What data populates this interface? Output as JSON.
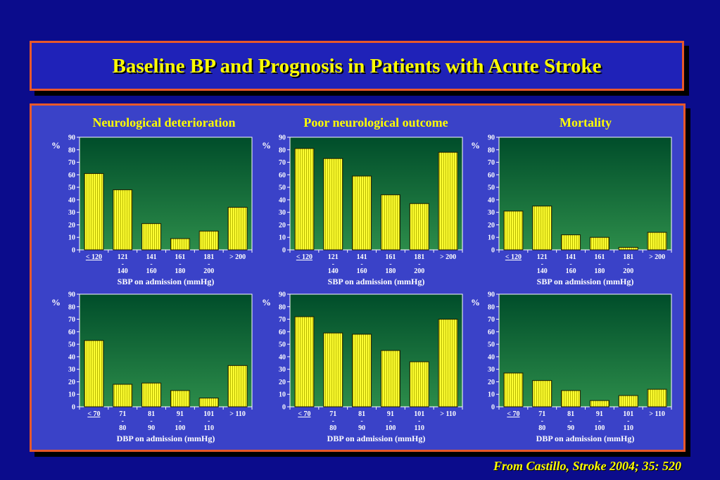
{
  "title": "Baseline BP and Prognosis in Patients with Acute Stroke",
  "credit": "From Castillo, Stroke 2004; 35: 520",
  "colors": {
    "background": "#0b0c8c",
    "panel": "#3a42c8",
    "border": "#e8582a",
    "title_text": "#ffff00",
    "bar": "#ffff33",
    "plot_top": "#004d2a",
    "plot_bottom": "#2c8c4a"
  },
  "chart_data": [
    {
      "type": "bar",
      "title": "Neurological deterioration",
      "ylabel": "%",
      "xlabel": "SBP on admission (mmHg)",
      "ylim": [
        0,
        90
      ],
      "yticks": [
        "0",
        "10",
        "20",
        "30",
        "40",
        "50",
        "60",
        "70",
        "80",
        "90"
      ],
      "categories": [
        [
          "< 120"
        ],
        [
          "121",
          "-",
          "140"
        ],
        [
          "141",
          "-",
          "160"
        ],
        [
          "161",
          "-",
          "180"
        ],
        [
          "181",
          "-",
          "200"
        ],
        [
          "> 200"
        ]
      ],
      "values": [
        61,
        48,
        21,
        9,
        15,
        34
      ]
    },
    {
      "type": "bar",
      "title": "Poor neurological outcome",
      "ylabel": "%",
      "xlabel": "SBP on admission (mmHg)",
      "ylim": [
        0,
        90
      ],
      "yticks": [
        "0",
        "10",
        "20",
        "30",
        "40",
        "50",
        "60",
        "70",
        "80",
        "90"
      ],
      "categories": [
        [
          "< 120"
        ],
        [
          "121",
          "-",
          "140"
        ],
        [
          "141",
          "-",
          "160"
        ],
        [
          "161",
          "-",
          "180"
        ],
        [
          "181",
          "-",
          "200"
        ],
        [
          "> 200"
        ]
      ],
      "values": [
        81,
        73,
        59,
        44,
        37,
        78
      ]
    },
    {
      "type": "bar",
      "title": "Mortality",
      "ylabel": "%",
      "xlabel": "SBP on admission (mmHg)",
      "ylim": [
        0,
        90
      ],
      "yticks": [
        "0",
        "10",
        "20",
        "30",
        "40",
        "50",
        "60",
        "70",
        "80",
        "90"
      ],
      "categories": [
        [
          "< 120"
        ],
        [
          "121",
          "-",
          "140"
        ],
        [
          "141",
          "-",
          "160"
        ],
        [
          "161",
          "-",
          "180"
        ],
        [
          "181",
          "-",
          "200"
        ],
        [
          "> 200"
        ]
      ],
      "values": [
        31,
        35,
        12,
        10,
        2,
        14
      ]
    },
    {
      "type": "bar",
      "title": "",
      "ylabel": "%",
      "xlabel": "DBP on admission (mmHg)",
      "ylim": [
        0,
        90
      ],
      "yticks": [
        "0",
        "10",
        "20",
        "30",
        "40",
        "50",
        "60",
        "70",
        "80",
        "90"
      ],
      "categories": [
        [
          "< 70"
        ],
        [
          "71",
          "-",
          "80"
        ],
        [
          "81",
          "-",
          "90"
        ],
        [
          "91",
          "-",
          "100"
        ],
        [
          "101",
          "-",
          "110"
        ],
        [
          "> 110"
        ]
      ],
      "values": [
        53,
        18,
        19,
        13,
        7,
        33
      ]
    },
    {
      "type": "bar",
      "title": "",
      "ylabel": "%",
      "xlabel": "DBP on admission (mmHg)",
      "ylim": [
        0,
        90
      ],
      "yticks": [
        "0",
        "10",
        "20",
        "30",
        "40",
        "50",
        "60",
        "70",
        "80",
        "90"
      ],
      "categories": [
        [
          "< 70"
        ],
        [
          "71",
          "-",
          "80"
        ],
        [
          "81",
          "-",
          "90"
        ],
        [
          "91",
          "-",
          "100"
        ],
        [
          "101",
          "-",
          "110"
        ],
        [
          "> 110"
        ]
      ],
      "values": [
        72,
        59,
        58,
        45,
        36,
        70
      ]
    },
    {
      "type": "bar",
      "title": "",
      "ylabel": "%",
      "xlabel": "DBP on admission (mmHg)",
      "ylim": [
        0,
        90
      ],
      "yticks": [
        "0",
        "10",
        "20",
        "30",
        "40",
        "50",
        "60",
        "70",
        "80",
        "90"
      ],
      "categories": [
        [
          "< 70"
        ],
        [
          "71",
          "-",
          "80"
        ],
        [
          "81",
          "-",
          "90"
        ],
        [
          "91",
          "-",
          "100"
        ],
        [
          "101",
          "-",
          "110"
        ],
        [
          "> 110"
        ]
      ],
      "values": [
        27,
        21,
        13,
        5,
        9,
        14
      ]
    }
  ]
}
